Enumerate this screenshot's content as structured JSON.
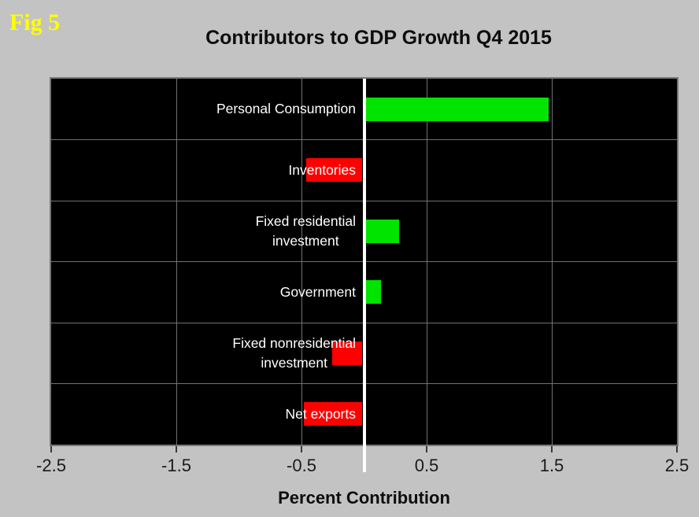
{
  "figure": {
    "label": "Fig 5"
  },
  "header": {
    "title": "Contributors to GDP Growth Q4 2015"
  },
  "chart_data": {
    "type": "bar",
    "orientation": "horizontal",
    "title": "Contributors to GDP Growth Q4 2015",
    "xlabel": "Percent Contribution",
    "categories": [
      "Personal Consumption",
      "Inventories",
      "Fixed residential\ninvestment",
      "Government",
      "Fixed nonresidential\ninvestment",
      "Net exports"
    ],
    "values": [
      1.46,
      -0.45,
      0.27,
      0.12,
      -0.24,
      -0.47
    ],
    "xlim": [
      -2.5,
      2.5
    ],
    "xticks": [
      -2.5,
      -1.5,
      -0.5,
      0.5,
      1.5,
      2.5
    ],
    "xtick_labels": [
      "-2.5",
      "-1.5",
      "-0.5",
      "0.5",
      "1.5",
      "2.5"
    ],
    "grid": true,
    "legend": "none",
    "colors": {
      "positive": "#00e400",
      "negative": "#ff0000",
      "plot_background": "#000000",
      "page_background": "#c3c3c3",
      "gridline": "#717171",
      "zero_line": "#ffffff",
      "bar_label_text": "#ffffff",
      "title_text": "#0d0d0d",
      "fig_label_text": "#ffff00"
    }
  }
}
